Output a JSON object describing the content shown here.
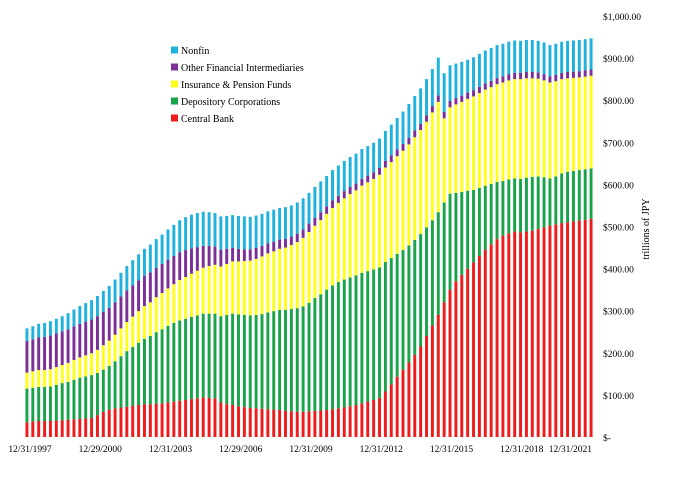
{
  "chart_data": {
    "type": "bar",
    "stacked": true,
    "ylabel": "trillions of JPY",
    "ylim": [
      0,
      1000
    ],
    "y_ticks": [
      {
        "value": 0,
        "label": "$-"
      },
      {
        "value": 100,
        "label": "$100.00"
      },
      {
        "value": 200,
        "label": "$200.00"
      },
      {
        "value": 300,
        "label": "$300.00"
      },
      {
        "value": 400,
        "label": "$400.00"
      },
      {
        "value": 500,
        "label": "$500.00"
      },
      {
        "value": 600,
        "label": "$600.00"
      },
      {
        "value": 700,
        "label": "$700.00"
      },
      {
        "value": 800,
        "label": "$800.00"
      },
      {
        "value": 900,
        "label": "$900.00"
      },
      {
        "value": 1000,
        "label": "$1,000.00"
      }
    ],
    "x_tick_labels": [
      "12/31/1997",
      "12/29/2000",
      "12/31/2003",
      "12/29/2006",
      "12/31/2009",
      "12/31/2012",
      "12/31/2015",
      "12/31/2018",
      "12/31/2021"
    ],
    "y_axis_position": "right",
    "grid": false,
    "legend_position": "top-left",
    "x": [
      "Q4 1997",
      "Q1 1998",
      "Q2 1998",
      "Q3 1998",
      "Q4 1998",
      "Q1 1999",
      "Q2 1999",
      "Q3 1999",
      "Q4 1999",
      "Q1 2000",
      "Q2 2000",
      "Q3 2000",
      "Q4 2000",
      "Q1 2001",
      "Q2 2001",
      "Q3 2001",
      "Q4 2001",
      "Q1 2002",
      "Q2 2002",
      "Q3 2002",
      "Q4 2002",
      "Q1 2003",
      "Q2 2003",
      "Q3 2003",
      "Q4 2003",
      "Q1 2004",
      "Q2 2004",
      "Q3 2004",
      "Q4 2004",
      "Q1 2005",
      "Q2 2005",
      "Q3 2005",
      "Q4 2005",
      "Q1 2006",
      "Q2 2006",
      "Q3 2006",
      "Q4 2006",
      "Q1 2007",
      "Q2 2007",
      "Q3 2007",
      "Q4 2007",
      "Q1 2008",
      "Q2 2008",
      "Q3 2008",
      "Q4 2008",
      "Q1 2009",
      "Q2 2009",
      "Q3 2009",
      "Q4 2009",
      "Q1 2010",
      "Q2 2010",
      "Q3 2010",
      "Q4 2010",
      "Q1 2011",
      "Q2 2011",
      "Q3 2011",
      "Q4 2011",
      "Q1 2012",
      "Q2 2012",
      "Q3 2012",
      "Q4 2012",
      "Q1 2013",
      "Q2 2013",
      "Q3 2013",
      "Q4 2013",
      "Q1 2014",
      "Q2 2014",
      "Q3 2014",
      "Q4 2014",
      "Q1 2015",
      "Q2 2015",
      "Q3 2015",
      "Q4 2015",
      "Q1 2016",
      "Q2 2016",
      "Q3 2016",
      "Q4 2016",
      "Q1 2017",
      "Q2 2017",
      "Q3 2017",
      "Q4 2017",
      "Q1 2018",
      "Q2 2018",
      "Q3 2018",
      "Q4 2018",
      "Q1 2019",
      "Q2 2019",
      "Q3 2019",
      "Q4 2019",
      "Q1 2020",
      "Q2 2020",
      "Q3 2020",
      "Q4 2020",
      "Q1 2021",
      "Q2 2021",
      "Q3 2021",
      "Q4 2021"
    ],
    "series": [
      {
        "name": "Central Bank",
        "color": "#ee1c1c",
        "values": [
          35,
          37,
          38,
          38,
          38,
          39,
          40,
          41,
          42,
          43,
          44,
          45,
          52,
          60,
          65,
          68,
          70,
          72,
          74,
          76,
          78,
          78,
          79,
          80,
          82,
          84,
          86,
          88,
          90,
          92,
          94,
          93,
          92,
          82,
          78,
          76,
          73,
          71,
          69,
          68,
          67,
          66,
          65,
          64,
          62,
          61,
          60,
          60,
          61,
          62,
          63,
          64,
          66,
          68,
          70,
          73,
          76,
          80,
          84,
          88,
          93,
          108,
          125,
          143,
          160,
          177,
          195,
          215,
          240,
          265,
          290,
          320,
          350,
          370,
          385,
          400,
          415,
          430,
          445,
          458,
          470,
          478,
          484,
          488,
          486,
          488,
          490,
          494,
          498,
          502,
          505,
          508,
          510,
          512,
          514,
          516,
          518
        ]
      },
      {
        "name": "Depository Corporations",
        "color": "#19a34b",
        "values": [
          80,
          80,
          81,
          81,
          82,
          85,
          88,
          90,
          94,
          98,
          100,
          102,
          100,
          100,
          104,
          112,
          122,
          132,
          140,
          148,
          155,
          162,
          170,
          176,
          182,
          187,
          191,
          193,
          195,
          197,
          199,
          200,
          201,
          205,
          212,
          217,
          218,
          219,
          220,
          222,
          225,
          230,
          234,
          238,
          240,
          243,
          246,
          250,
          258,
          268,
          276,
          286,
          294,
          300,
          304,
          306,
          308,
          310,
          310,
          310,
          310,
          308,
          300,
          292,
          284,
          278,
          273,
          267,
          258,
          250,
          244,
          237,
          228,
          210,
          197,
          185,
          172,
          162,
          152,
          143,
          136,
          130,
          128,
          126,
          127,
          128,
          128,
          125,
          119,
          112,
          114,
          118,
          120,
          120,
          120,
          120,
          120
        ]
      },
      {
        "name": "Insurance & Pension Funds",
        "color": "#ffff1a",
        "values": [
          38,
          39,
          40,
          40,
          41,
          42,
          43,
          45,
          47,
          48,
          50,
          52,
          55,
          58,
          60,
          63,
          66,
          69,
          72,
          75,
          78,
          80,
          83,
          86,
          89,
          92,
          96,
          99,
          103,
          106,
          109,
          113,
          116,
          118,
          121,
          124,
          126,
          128,
          130,
          133,
          137,
          140,
          142,
          145,
          148,
          152,
          157,
          163,
          168,
          172,
          176,
          180,
          184,
          188,
          193,
          198,
          202,
          207,
          211,
          215,
          220,
          224,
          228,
          232,
          236,
          240,
          244,
          247,
          251,
          256,
          262,
          200,
          205,
          210,
          214,
          218,
          222,
          225,
          228,
          230,
          232,
          234,
          235,
          236,
          237,
          236,
          234,
          232,
          230,
          228,
          226,
          224,
          222,
          221,
          220,
          220,
          220
        ]
      },
      {
        "name": "Other Financial Intermediaries",
        "color": "#7b3097",
        "values": [
          75,
          76,
          78,
          79,
          80,
          80,
          80,
          80,
          80,
          80,
          80,
          80,
          80,
          79,
          78,
          77,
          76,
          75,
          74,
          73,
          72,
          71,
          70,
          69,
          68,
          67,
          66,
          64,
          60,
          56,
          52,
          48,
          44,
          40,
          36,
          32,
          30,
          28,
          27,
          26,
          25,
          24,
          23,
          22,
          21,
          20,
          20,
          20,
          20,
          19,
          19,
          18,
          18,
          17,
          17,
          17,
          16,
          16,
          16,
          16,
          16,
          16,
          16,
          16,
          16,
          16,
          16,
          15,
          15,
          15,
          15,
          15,
          15,
          15,
          15,
          15,
          15,
          15,
          15,
          15,
          15,
          15,
          15,
          15,
          15,
          15,
          15,
          15,
          15,
          15,
          15,
          15,
          15,
          15,
          15,
          15,
          15
        ]
      },
      {
        "name": "Nonfin",
        "color": "#1fb2dc",
        "values": [
          30,
          31,
          32,
          33,
          34,
          35,
          36,
          38,
          40,
          42,
          44,
          46,
          48,
          50,
          52,
          54,
          56,
          58,
          60,
          62,
          64,
          66,
          68,
          70,
          72,
          74,
          76,
          78,
          80,
          81,
          81,
          80,
          79,
          79,
          78,
          78,
          78,
          78,
          77,
          77,
          76,
          76,
          76,
          75,
          75,
          74,
          74,
          74,
          73,
          73,
          73,
          72,
          72,
          72,
          72,
          71,
          71,
          71,
          70,
          70,
          70,
          71,
          73,
          75,
          77,
          80,
          82,
          84,
          86,
          88,
          90,
          92,
          85,
          82,
          80,
          78,
          78,
          78,
          78,
          78,
          78,
          77,
          77,
          77,
          76,
          76,
          76,
          75,
          75,
          74,
          74,
          74,
          74,
          74,
          74,
          74,
          74
        ]
      }
    ]
  }
}
